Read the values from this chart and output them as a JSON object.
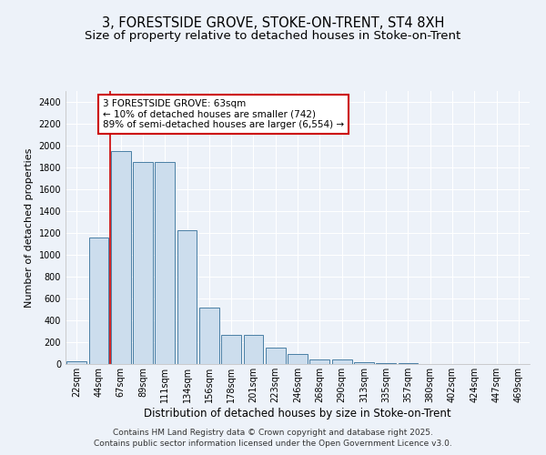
{
  "title_line1": "3, FORESTSIDE GROVE, STOKE-ON-TRENT, ST4 8XH",
  "title_line2": "Size of property relative to detached houses in Stoke-on-Trent",
  "xlabel": "Distribution of detached houses by size in Stoke-on-Trent",
  "ylabel": "Number of detached properties",
  "categories": [
    "22sqm",
    "44sqm",
    "67sqm",
    "89sqm",
    "111sqm",
    "134sqm",
    "156sqm",
    "178sqm",
    "201sqm",
    "223sqm",
    "246sqm",
    "268sqm",
    "290sqm",
    "313sqm",
    "335sqm",
    "357sqm",
    "380sqm",
    "402sqm",
    "424sqm",
    "447sqm",
    "469sqm"
  ],
  "values": [
    25,
    1160,
    1950,
    1850,
    1850,
    1225,
    520,
    270,
    270,
    150,
    90,
    45,
    40,
    20,
    8,
    5,
    3,
    3,
    2,
    2,
    2
  ],
  "bar_color": "#ccdded",
  "bar_edge_color": "#4a7fa5",
  "vline_x": 1.5,
  "vline_color": "#cc0000",
  "annotation_text": "3 FORESTSIDE GROVE: 63sqm\n← 10% of detached houses are smaller (742)\n89% of semi-detached houses are larger (6,554) →",
  "annotation_box_color": "white",
  "annotation_box_edge_color": "#cc0000",
  "ylim": [
    0,
    2500
  ],
  "yticks": [
    0,
    200,
    400,
    600,
    800,
    1000,
    1200,
    1400,
    1600,
    1800,
    2000,
    2200,
    2400
  ],
  "background_color": "#edf2f9",
  "grid_color": "#ffffff",
  "footer_line1": "Contains HM Land Registry data © Crown copyright and database right 2025.",
  "footer_line2": "Contains public sector information licensed under the Open Government Licence v3.0.",
  "title_fontsize": 10.5,
  "subtitle_fontsize": 9.5,
  "ylabel_fontsize": 8,
  "xlabel_fontsize": 8.5,
  "tick_fontsize": 7,
  "annotation_fontsize": 7.5,
  "footer_fontsize": 6.5
}
